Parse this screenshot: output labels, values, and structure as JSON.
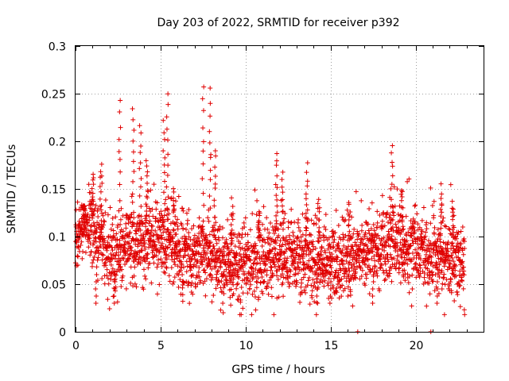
{
  "chart_data": {
    "type": "scatter",
    "title": "Day 203 of 2022, SRMTID for receiver p392",
    "xlabel": "GPS time / hours",
    "ylabel": "SRMTID / TECUs",
    "xlim": [
      0,
      24
    ],
    "ylim": [
      0,
      0.3
    ],
    "xticks": [
      0,
      5,
      10,
      15,
      20
    ],
    "xtick_labels": [
      "0",
      "5",
      "10",
      "15",
      "20"
    ],
    "yticks": [
      0,
      0.05,
      0.1,
      0.15,
      0.2,
      0.25,
      0.3
    ],
    "ytick_labels": [
      "0",
      "0.05",
      "0.1",
      "0.15",
      "0.2",
      "0.25",
      "0.3"
    ],
    "grid": true,
    "marker": "plus",
    "marker_color": "#e00000",
    "series": [
      {
        "name": "SRMTID",
        "data_range": [
          0,
          22.9
        ],
        "baseline_profile": [
          [
            0.0,
            0.1
          ],
          [
            0.5,
            0.11
          ],
          [
            1.0,
            0.105
          ],
          [
            1.5,
            0.09
          ],
          [
            2.0,
            0.075
          ],
          [
            2.5,
            0.08
          ],
          [
            3.0,
            0.09
          ],
          [
            4.0,
            0.095
          ],
          [
            5.0,
            0.1
          ],
          [
            5.5,
            0.095
          ],
          [
            6.0,
            0.085
          ],
          [
            7.0,
            0.08
          ],
          [
            7.5,
            0.085
          ],
          [
            8.0,
            0.08
          ],
          [
            9.0,
            0.07
          ],
          [
            10.0,
            0.07
          ],
          [
            11.0,
            0.075
          ],
          [
            12.0,
            0.08
          ],
          [
            13.0,
            0.075
          ],
          [
            14.0,
            0.075
          ],
          [
            15.0,
            0.07
          ],
          [
            16.0,
            0.075
          ],
          [
            17.0,
            0.085
          ],
          [
            18.0,
            0.09
          ],
          [
            19.0,
            0.09
          ],
          [
            20.0,
            0.085
          ],
          [
            21.0,
            0.08
          ],
          [
            22.0,
            0.08
          ],
          [
            22.9,
            0.075
          ]
        ],
        "peaks": [
          {
            "x": 0.5,
            "y": 0.13
          },
          {
            "x": 1.0,
            "y": 0.165
          },
          {
            "x": 1.5,
            "y": 0.175
          },
          {
            "x": 2.6,
            "y": 0.242
          },
          {
            "x": 3.4,
            "y": 0.235
          },
          {
            "x": 3.8,
            "y": 0.215
          },
          {
            "x": 4.2,
            "y": 0.18
          },
          {
            "x": 5.2,
            "y": 0.22
          },
          {
            "x": 5.4,
            "y": 0.25
          },
          {
            "x": 5.8,
            "y": 0.15
          },
          {
            "x": 7.5,
            "y": 0.258
          },
          {
            "x": 7.9,
            "y": 0.255
          },
          {
            "x": 8.2,
            "y": 0.19
          },
          {
            "x": 9.2,
            "y": 0.13
          },
          {
            "x": 10.8,
            "y": 0.125
          },
          {
            "x": 11.8,
            "y": 0.19
          },
          {
            "x": 12.2,
            "y": 0.165
          },
          {
            "x": 13.6,
            "y": 0.175
          },
          {
            "x": 14.3,
            "y": 0.14
          },
          {
            "x": 16.1,
            "y": 0.135
          },
          {
            "x": 18.6,
            "y": 0.195
          },
          {
            "x": 19.2,
            "y": 0.15
          },
          {
            "x": 21.5,
            "y": 0.145
          },
          {
            "x": 22.2,
            "y": 0.135
          }
        ],
        "lows": [
          {
            "x": 1.2,
            "y": 0.03
          },
          {
            "x": 2.3,
            "y": 0.03
          },
          {
            "x": 6.3,
            "y": 0.032
          },
          {
            "x": 8.7,
            "y": 0.02
          },
          {
            "x": 9.1,
            "y": 0.028
          },
          {
            "x": 14.2,
            "y": 0.03
          },
          {
            "x": 15.0,
            "y": 0.03
          },
          {
            "x": 17.5,
            "y": 0.03
          },
          {
            "x": 21.3,
            "y": 0.03
          }
        ],
        "zero_points": [
          {
            "x": 16.6,
            "y": 0.0
          },
          {
            "x": 20.9,
            "y": 0.0
          }
        ]
      }
    ]
  }
}
